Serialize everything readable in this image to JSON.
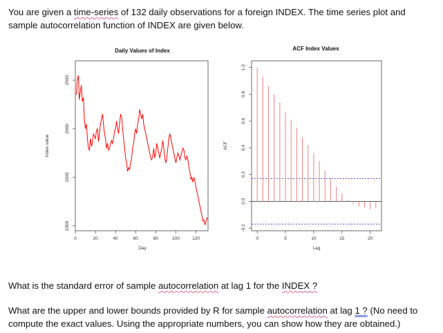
{
  "text": {
    "intro_a": "You are given a ",
    "intro_b": "time-series",
    "intro_c": " of 132 daily observations for a foreign INDEX. The time series plot and sample autocorrelation function of INDEX are given below.",
    "q1_a": "What is the standard error of sample ",
    "q1_b": "autocorrelation",
    "q1_c": " at lag 1 for the ",
    "q1_d": "INDEX ?",
    "q2_a": "What are the upper and lower bounds provided by R for sample ",
    "q2_b": "autocorrelation",
    "q2_c": " at lag ",
    "q2_d": "1 ?",
    "q2_e": " (No need to compute the exact values. Using the appropriate numbers, you can show how they are obtained.)"
  },
  "chart_data": [
    {
      "type": "line",
      "title": "Daily Values of Index",
      "xlabel": "Day",
      "ylabel": "Index value",
      "xlim": [
        0,
        132
      ],
      "ylim": [
        950,
        2700
      ],
      "xticks": [
        0,
        20,
        40,
        60,
        80,
        100,
        120
      ],
      "yticks": [
        1000,
        1500,
        2000,
        2500
      ],
      "color": "#ff0000",
      "points": [
        [
          1,
          2350
        ],
        [
          2,
          2500
        ],
        [
          3,
          2550
        ],
        [
          4,
          2300
        ],
        [
          5,
          2380
        ],
        [
          6,
          2450
        ],
        [
          7,
          2280
        ],
        [
          8,
          2320
        ],
        [
          9,
          2100
        ],
        [
          10,
          2000
        ],
        [
          11,
          2050
        ],
        [
          12,
          1900
        ],
        [
          13,
          1800
        ],
        [
          14,
          1780
        ],
        [
          15,
          1900
        ],
        [
          16,
          1820
        ],
        [
          17,
          1850
        ],
        [
          18,
          1950
        ],
        [
          19,
          1920
        ],
        [
          20,
          1900
        ],
        [
          21,
          1980
        ],
        [
          22,
          2000
        ],
        [
          23,
          1870
        ],
        [
          24,
          1950
        ],
        [
          25,
          2050
        ],
        [
          26,
          2100
        ],
        [
          27,
          2150
        ],
        [
          28,
          2050
        ],
        [
          29,
          1950
        ],
        [
          30,
          1900
        ],
        [
          31,
          1800
        ],
        [
          32,
          1850
        ],
        [
          33,
          1780
        ],
        [
          34,
          1800
        ],
        [
          35,
          1850
        ],
        [
          36,
          1880
        ],
        [
          37,
          1850
        ],
        [
          38,
          1900
        ],
        [
          39,
          1980
        ],
        [
          40,
          2000
        ],
        [
          41,
          2080
        ],
        [
          42,
          2000
        ],
        [
          43,
          1950
        ],
        [
          44,
          2050
        ],
        [
          45,
          2150
        ],
        [
          46,
          2120
        ],
        [
          47,
          2000
        ],
        [
          48,
          1900
        ],
        [
          49,
          1800
        ],
        [
          50,
          1700
        ],
        [
          51,
          1650
        ],
        [
          52,
          1560
        ],
        [
          53,
          1600
        ],
        [
          54,
          1580
        ],
        [
          55,
          1650
        ],
        [
          56,
          1700
        ],
        [
          57,
          1800
        ],
        [
          58,
          1850
        ],
        [
          59,
          1950
        ],
        [
          60,
          2000
        ],
        [
          61,
          1950
        ],
        [
          62,
          2050
        ],
        [
          63,
          2100
        ],
        [
          64,
          2200
        ],
        [
          65,
          2150
        ],
        [
          66,
          2100
        ],
        [
          67,
          2150
        ],
        [
          68,
          2050
        ],
        [
          69,
          2000
        ],
        [
          70,
          1950
        ],
        [
          71,
          1900
        ],
        [
          72,
          1850
        ],
        [
          73,
          1800
        ],
        [
          74,
          1750
        ],
        [
          75,
          1700
        ],
        [
          76,
          1680
        ],
        [
          77,
          1720
        ],
        [
          78,
          1800
        ],
        [
          79,
          1700
        ],
        [
          80,
          1750
        ],
        [
          81,
          1850
        ],
        [
          82,
          1800
        ],
        [
          83,
          1750
        ],
        [
          84,
          1700
        ],
        [
          85,
          1750
        ],
        [
          86,
          1800
        ],
        [
          87,
          1880
        ],
        [
          88,
          1800
        ],
        [
          89,
          1700
        ],
        [
          90,
          1650
        ],
        [
          91,
          1700
        ],
        [
          92,
          1800
        ],
        [
          93,
          1900
        ],
        [
          94,
          1950
        ],
        [
          95,
          1900
        ],
        [
          96,
          1850
        ],
        [
          97,
          1800
        ],
        [
          98,
          1750
        ],
        [
          99,
          1700
        ],
        [
          100,
          1650
        ],
        [
          101,
          1700
        ],
        [
          102,
          1750
        ],
        [
          103,
          1720
        ],
        [
          104,
          1680
        ],
        [
          105,
          1720
        ],
        [
          106,
          1760
        ],
        [
          107,
          1800
        ],
        [
          108,
          1780
        ],
        [
          109,
          1700
        ],
        [
          110,
          1680
        ],
        [
          111,
          1720
        ],
        [
          112,
          1680
        ],
        [
          113,
          1600
        ],
        [
          114,
          1550
        ],
        [
          115,
          1480
        ],
        [
          116,
          1500
        ],
        [
          117,
          1450
        ],
        [
          118,
          1500
        ],
        [
          119,
          1460
        ],
        [
          120,
          1400
        ],
        [
          121,
          1350
        ],
        [
          122,
          1300
        ],
        [
          123,
          1250
        ],
        [
          124,
          1200
        ],
        [
          125,
          1150
        ],
        [
          126,
          1100
        ],
        [
          127,
          1050
        ],
        [
          128,
          1060
        ],
        [
          129,
          1010
        ],
        [
          130,
          1050
        ],
        [
          131,
          1080
        ],
        [
          132,
          1070
        ]
      ]
    },
    {
      "type": "bar",
      "title": "ACF Index Values",
      "xlabel": "Lag",
      "ylabel": "ACF",
      "xlim": [
        -1,
        22
      ],
      "ylim": [
        -0.22,
        1.05
      ],
      "xticks": [
        0,
        5,
        10,
        15,
        20
      ],
      "yticks": [
        -0.2,
        0.0,
        0.2,
        0.4,
        0.6,
        0.8,
        1.0
      ],
      "color": "#f08080",
      "ci_color": "#3333cc",
      "confidence_bound": 0.17,
      "lags": [
        0,
        1,
        2,
        3,
        4,
        5,
        6,
        7,
        8,
        9,
        10,
        11,
        12,
        13,
        14,
        15,
        16,
        17,
        18,
        19,
        20,
        21
      ],
      "values": [
        1.0,
        0.93,
        0.86,
        0.8,
        0.74,
        0.67,
        0.61,
        0.55,
        0.48,
        0.42,
        0.36,
        0.3,
        0.23,
        0.17,
        0.11,
        0.06,
        0.01,
        -0.02,
        -0.04,
        -0.05,
        -0.06,
        -0.05
      ]
    }
  ]
}
